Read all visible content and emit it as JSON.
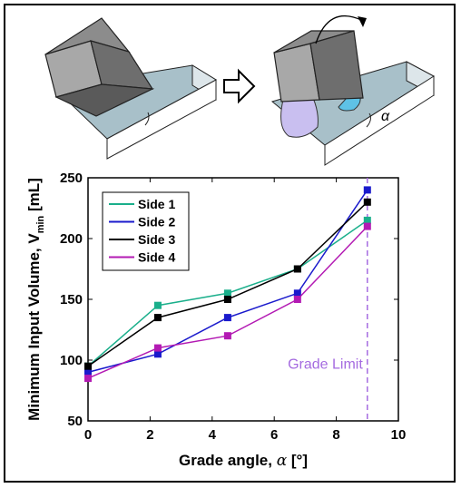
{
  "illustration": {
    "angle_symbol": "α"
  },
  "chart_data": {
    "type": "line",
    "xlabel_text": "Grade angle, ",
    "xlabel_symbol": "α",
    "xlabel_unit": " [°]",
    "ylabel_text": "Minimum Input Volume, V",
    "ylabel_sub": "min",
    "ylabel_unit": " [mL]",
    "xlim": [
      0,
      10
    ],
    "ylim": [
      50,
      250
    ],
    "x_ticks": [
      0,
      2,
      4,
      6,
      8,
      10
    ],
    "y_ticks": [
      50,
      100,
      150,
      200,
      250
    ],
    "grid": false,
    "legend_position": "top-left",
    "x": [
      0,
      2.25,
      4.5,
      6.75,
      9
    ],
    "series": [
      {
        "name": "Side 1",
        "color": "#1aaf8b",
        "values": [
          95,
          145,
          155,
          175,
          215
        ]
      },
      {
        "name": "Side 2",
        "color": "#1a1acc",
        "values": [
          90,
          105,
          135,
          155,
          240
        ]
      },
      {
        "name": "Side 3",
        "color": "#000000",
        "values": [
          95,
          135,
          150,
          175,
          230
        ]
      },
      {
        "name": "Side 4",
        "color": "#b31ab3",
        "values": [
          85,
          110,
          120,
          150,
          210
        ]
      }
    ],
    "annotation": {
      "text": "Grade Limit",
      "x": 9,
      "color": "#a56be0"
    }
  }
}
